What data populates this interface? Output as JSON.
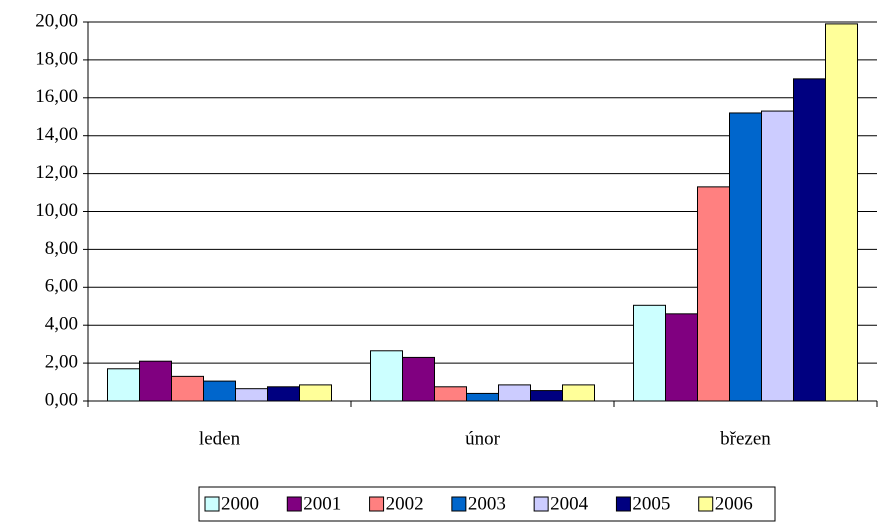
{
  "chart_data": {
    "type": "bar",
    "categories": [
      "leden",
      "únor",
      "březen"
    ],
    "series": [
      {
        "name": "2000",
        "color": "#ccffff",
        "values": [
          1.7,
          2.65,
          5.05
        ]
      },
      {
        "name": "2001",
        "color": "#800080",
        "values": [
          2.1,
          2.3,
          4.6
        ]
      },
      {
        "name": "2002",
        "color": "#ff8080",
        "values": [
          1.3,
          0.75,
          11.3
        ]
      },
      {
        "name": "2003",
        "color": "#0066cc",
        "values": [
          1.05,
          0.4,
          15.2
        ]
      },
      {
        "name": "2004",
        "color": "#ccccff",
        "values": [
          0.65,
          0.85,
          15.3
        ]
      },
      {
        "name": "2005",
        "color": "#000080",
        "values": [
          0.75,
          0.55,
          17.0
        ]
      },
      {
        "name": "2006",
        "color": "#ffff99",
        "values": [
          0.85,
          0.85,
          19.9
        ]
      }
    ],
    "ylim": [
      0,
      20
    ],
    "yticks": [
      {
        "value": 0,
        "label": "0,00"
      },
      {
        "value": 2,
        "label": "2,00"
      },
      {
        "value": 4,
        "label": "4,00"
      },
      {
        "value": 6,
        "label": "6,00"
      },
      {
        "value": 8,
        "label": "8,00"
      },
      {
        "value": 10,
        "label": "10,00"
      },
      {
        "value": 12,
        "label": "12,00"
      },
      {
        "value": 14,
        "label": "14,00"
      },
      {
        "value": 16,
        "label": "16,00"
      },
      {
        "value": 18,
        "label": "18,00"
      },
      {
        "value": 20,
        "label": "20,00"
      }
    ],
    "grid": true,
    "legend": "bottom"
  }
}
